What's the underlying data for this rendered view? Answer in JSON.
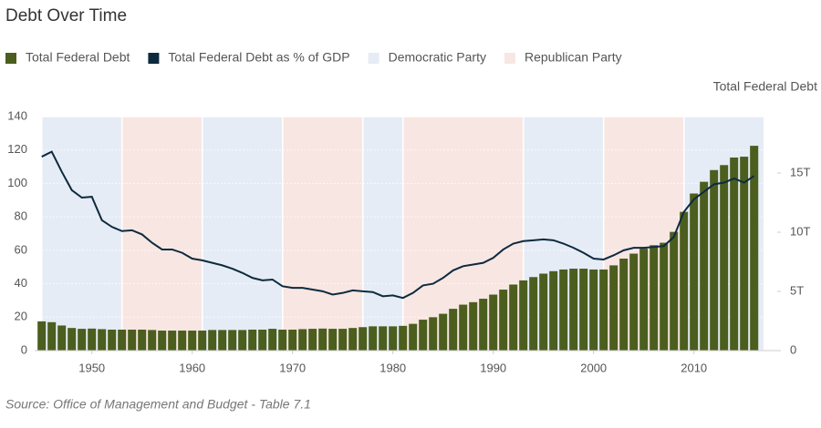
{
  "chart_data": {
    "type": "bar_line",
    "title": "Debt Over Time",
    "source": "Source: Office of Management and Budget - Table 7.1",
    "y2label": "Total Federal Debt",
    "x": [
      1945,
      1946,
      1947,
      1948,
      1949,
      1950,
      1951,
      1952,
      1953,
      1954,
      1955,
      1956,
      1957,
      1958,
      1959,
      1960,
      1961,
      1962,
      1963,
      1964,
      1965,
      1966,
      1967,
      1968,
      1969,
      1970,
      1971,
      1972,
      1973,
      1974,
      1975,
      1976,
      1977,
      1978,
      1979,
      1980,
      1981,
      1982,
      1983,
      1984,
      1985,
      1986,
      1987,
      1988,
      1989,
      1990,
      1991,
      1992,
      1993,
      1994,
      1995,
      1996,
      1997,
      1998,
      1999,
      2000,
      2001,
      2002,
      2003,
      2004,
      2005,
      2006,
      2007,
      2008,
      2009,
      2010,
      2011,
      2012,
      2013,
      2014,
      2015,
      2016
    ],
    "series": [
      {
        "name": "Total Federal Debt",
        "type": "bar",
        "axis": "y2",
        "color": "#4b5e1e",
        "values": [
          2.47,
          2.4,
          2.12,
          1.91,
          1.84,
          1.86,
          1.81,
          1.77,
          1.77,
          1.77,
          1.77,
          1.74,
          1.69,
          1.69,
          1.69,
          1.69,
          1.69,
          1.74,
          1.74,
          1.74,
          1.74,
          1.77,
          1.77,
          1.84,
          1.77,
          1.77,
          1.81,
          1.84,
          1.86,
          1.84,
          1.84,
          1.91,
          1.98,
          2.05,
          2.05,
          2.05,
          2.09,
          2.26,
          2.61,
          2.82,
          3.11,
          3.53,
          3.88,
          4.09,
          4.38,
          4.73,
          5.15,
          5.58,
          5.93,
          6.21,
          6.5,
          6.71,
          6.85,
          6.92,
          6.92,
          6.85,
          6.85,
          7.2,
          7.77,
          8.19,
          8.61,
          8.9,
          9.11,
          10.03,
          11.72,
          13.27,
          14.26,
          15.25,
          15.67,
          16.31,
          16.38,
          17.3
        ]
      },
      {
        "name": "Total Federal Debt as % of GDP",
        "type": "line",
        "axis": "y",
        "color": "#0d2a3f",
        "values": [
          116,
          119,
          107,
          96,
          91.5,
          92,
          78,
          74,
          71.5,
          72,
          69.5,
          64.5,
          60.5,
          60.5,
          58.5,
          55,
          54,
          52.5,
          51,
          49,
          46.5,
          43.5,
          42,
          42.5,
          38.5,
          37.5,
          37.5,
          36.5,
          35.5,
          33.5,
          34.5,
          36,
          35.5,
          35,
          32.5,
          33,
          31.5,
          34.5,
          39,
          40,
          43.5,
          48,
          50.5,
          51.5,
          52.5,
          55.5,
          60.5,
          64,
          65.5,
          66,
          66.5,
          66,
          64,
          61.5,
          58.5,
          55,
          54.5,
          57,
          60,
          61.5,
          61.5,
          62,
          62.5,
          68,
          83,
          90.5,
          95,
          99.5,
          100.5,
          103,
          100.5,
          104.5
        ]
      }
    ],
    "bands": [
      {
        "name": "Democratic Party",
        "color": "#e6ecf5",
        "spans": [
          [
            1945,
            1953
          ],
          [
            1961,
            1969
          ],
          [
            1977,
            1981
          ],
          [
            1993,
            2001
          ],
          [
            2009,
            2017
          ]
        ]
      },
      {
        "name": "Republican Party",
        "color": "#f8e6e2",
        "spans": [
          [
            1953,
            1961
          ],
          [
            1969,
            1977
          ],
          [
            1981,
            1993
          ],
          [
            2001,
            2009
          ]
        ]
      }
    ],
    "xlim": [
      1944.3,
      2018.3
    ],
    "xticks": [
      1950,
      1960,
      1970,
      1980,
      1990,
      2000,
      2010
    ],
    "ylim": [
      0,
      140
    ],
    "yticks": [
      0,
      20,
      40,
      60,
      80,
      100,
      120,
      140
    ],
    "y2lim": [
      0,
      19.77
    ],
    "y2ticks": [
      0,
      {
        "value": 5,
        "label": "5T"
      },
      {
        "value": 10,
        "label": "10T"
      },
      {
        "value": 15,
        "label": "15T"
      }
    ],
    "grid": true
  }
}
